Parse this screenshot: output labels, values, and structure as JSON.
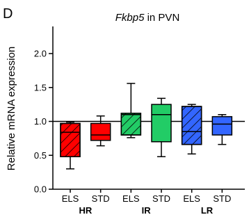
{
  "panel_label": "D",
  "chart_data": {
    "type": "box",
    "title_italic": "Fkbp5",
    "title_rest": " in PVN",
    "ylabel": "Relative mRNA expression",
    "ylim": [
      0,
      2.4
    ],
    "yticks": [
      "0.0",
      "0.5",
      "1.0",
      "1.5",
      "2.0"
    ],
    "ytick_values": [
      0,
      0.5,
      1.0,
      1.5,
      2.0
    ],
    "reference_line": 1.0,
    "groups": [
      "HR",
      "IR",
      "LR"
    ],
    "boxes": [
      {
        "label": "ELS",
        "group": "HR",
        "color": "#ff0000",
        "hatched": true,
        "min": 0.3,
        "q1": 0.48,
        "median": 0.84,
        "q3": 0.97,
        "max": 0.99
      },
      {
        "label": "STD",
        "group": "HR",
        "color": "#ff0000",
        "hatched": false,
        "min": 0.64,
        "q1": 0.72,
        "median": 0.8,
        "q3": 0.97,
        "max": 1.08
      },
      {
        "label": "ELS",
        "group": "IR",
        "color": "#22cc66",
        "hatched": true,
        "min": 0.76,
        "q1": 0.8,
        "median": 1.1,
        "q3": 1.12,
        "max": 1.56
      },
      {
        "label": "STD",
        "group": "IR",
        "color": "#22cc66",
        "hatched": false,
        "min": 0.48,
        "q1": 0.7,
        "median": 1.1,
        "q3": 1.25,
        "max": 1.34
      },
      {
        "label": "ELS",
        "group": "LR",
        "color": "#3366ff",
        "hatched": true,
        "min": 0.52,
        "q1": 0.66,
        "median": 0.85,
        "q3": 1.22,
        "max": 1.25
      },
      {
        "label": "STD",
        "group": "LR",
        "color": "#3366ff",
        "hatched": false,
        "min": 0.66,
        "q1": 0.8,
        "median": 0.96,
        "q3": 1.07,
        "max": 1.1
      }
    ]
  }
}
